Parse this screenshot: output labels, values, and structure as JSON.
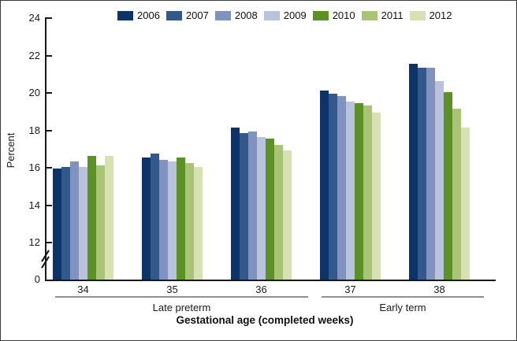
{
  "chart_data": {
    "type": "bar",
    "title": "",
    "categories": [
      "34",
      "35",
      "36",
      "37",
      "38"
    ],
    "series": [
      {
        "name": "2006",
        "color": "#0d3468",
        "values": [
          15.9,
          16.5,
          18.1,
          20.1,
          21.5
        ]
      },
      {
        "name": "2007",
        "color": "#33588c",
        "values": [
          16.0,
          16.7,
          17.8,
          19.9,
          21.3
        ]
      },
      {
        "name": "2008",
        "color": "#8093bf",
        "values": [
          16.3,
          16.4,
          17.9,
          19.8,
          21.3
        ]
      },
      {
        "name": "2009",
        "color": "#b9c3dc",
        "values": [
          16.0,
          16.3,
          17.6,
          19.5,
          20.6
        ]
      },
      {
        "name": "2010",
        "color": "#5b9125",
        "values": [
          16.6,
          16.5,
          17.5,
          19.4,
          20.0
        ]
      },
      {
        "name": "2011",
        "color": "#a9c377",
        "values": [
          16.1,
          16.2,
          17.2,
          19.3,
          19.1
        ]
      },
      {
        "name": "2012",
        "color": "#d6e2b3",
        "values": [
          16.6,
          16.0,
          16.9,
          18.9,
          18.1
        ]
      }
    ],
    "ylabel": "Percent",
    "xlabel": "Gestational age (completed weeks)",
    "y_ticks": [
      0,
      12,
      14,
      16,
      18,
      20,
      22,
      24
    ],
    "ylim": [
      0,
      24
    ],
    "axis_break_between": [
      0,
      12
    ],
    "grid": false,
    "legend_position": "top",
    "group_brackets": [
      {
        "label": "Late preterm",
        "from": "34",
        "to": "36"
      },
      {
        "label": "Early term",
        "from": "37",
        "to": "38"
      }
    ]
  }
}
